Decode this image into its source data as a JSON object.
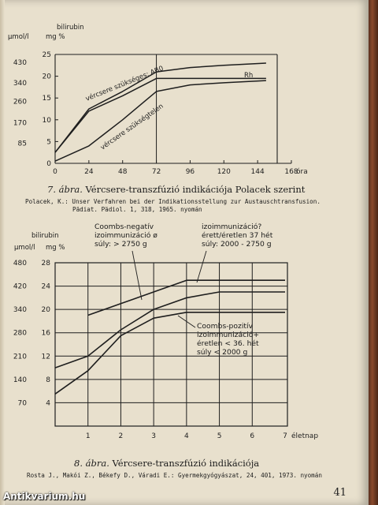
{
  "chart_data": [
    {
      "type": "line",
      "unit_labels": {
        "top": "bilirubin",
        "left_unit": "µmol/l",
        "right_unit": "mg %"
      },
      "y_left_ticks": [
        "430",
        "340",
        "260",
        "170",
        "85"
      ],
      "y_right_ticks": [
        "25",
        "20",
        "15",
        "10",
        "5",
        "0"
      ],
      "x_ticks": [
        "0",
        "24",
        "48",
        "72",
        "96",
        "120",
        "144",
        "168"
      ],
      "x_unit": "óra",
      "xlim": [
        0,
        168
      ],
      "ylim": [
        0,
        25
      ],
      "series": [
        {
          "name": "vércsere szükséges: AB0",
          "x": [
            0,
            24,
            48,
            72,
            96,
            120,
            150
          ],
          "y": [
            2.5,
            12.5,
            16.5,
            21,
            22,
            22.5,
            23
          ]
        },
        {
          "name": "Rh",
          "x": [
            0,
            24,
            48,
            72,
            96,
            120,
            150
          ],
          "y": [
            2.5,
            12,
            15.5,
            19.5,
            19.5,
            19.5,
            19.5
          ]
        },
        {
          "name": "vércsere szükségtelen",
          "x": [
            0,
            24,
            48,
            72,
            96,
            120,
            150
          ],
          "y": [
            0.5,
            4,
            10,
            16.5,
            18,
            18.5,
            19
          ]
        }
      ],
      "caption": {
        "number": "7. ábra.",
        "title": "Vércsere-transzfúzió indikációja Polacek szerint",
        "ref_line1": "Polacek, K.: Unser Verfahren bei der Indikationsstellung zur Austauschtransfusion.",
        "ref_line2": "Pädiat. Pädiol. 1, 318, 1965. nyomán"
      }
    },
    {
      "type": "line",
      "unit_labels": {
        "top": "bilirubin",
        "left_unit": "µmol/l",
        "right_unit": "mg %"
      },
      "y_left_ticks": [
        "480",
        "420",
        "340",
        "280",
        "210",
        "140",
        "70"
      ],
      "y_right_ticks": [
        "28",
        "24",
        "20",
        "16",
        "12",
        "8",
        "4"
      ],
      "x_ticks": [
        "1",
        "2",
        "3",
        "4",
        "5",
        "6",
        "7"
      ],
      "x_unit": "életnap",
      "xlim": [
        0,
        7
      ],
      "ylim": [
        0,
        28
      ],
      "annotations": [
        {
          "lines": [
            "Coombs-negatív",
            "izoimmunizáció ø",
            "súly: > 2750 g"
          ]
        },
        {
          "lines": [
            "izoimmunizáció?",
            "érett/éretlen 37 hét",
            "súly: 2000 - 2750 g"
          ]
        },
        {
          "lines": [
            "Coombs-pozitív",
            "izoimmunizáció+",
            "éretlen < 36. hét",
            "súly < 2000 g"
          ]
        }
      ],
      "series": [
        {
          "name": "",
          "x": [
            1,
            2,
            3,
            4,
            5,
            6,
            7
          ],
          "y": [
            19,
            21,
            23,
            25,
            25,
            25,
            25
          ]
        },
        {
          "name": "",
          "x": [
            0,
            1,
            2,
            3,
            4,
            5,
            6,
            7
          ],
          "y": [
            10,
            12,
            16.5,
            20,
            22,
            23,
            23,
            23
          ]
        },
        {
          "name": "",
          "x": [
            0,
            1,
            2,
            3,
            4,
            5,
            6,
            7
          ],
          "y": [
            5.5,
            9.5,
            15.5,
            18.5,
            19.5,
            19.5,
            19.5,
            19.5
          ]
        }
      ],
      "caption": {
        "number": "8. ábra.",
        "title": "Vércsere-transzfúzió indikációja",
        "ref_line1": "Rosta J., Makói Z., Békefy D., Váradi E.: Gyermekgyógyászat, 24, 401, 1973. nyomán"
      }
    }
  ],
  "page_number": "41",
  "watermark": "Antikvarium.hu"
}
